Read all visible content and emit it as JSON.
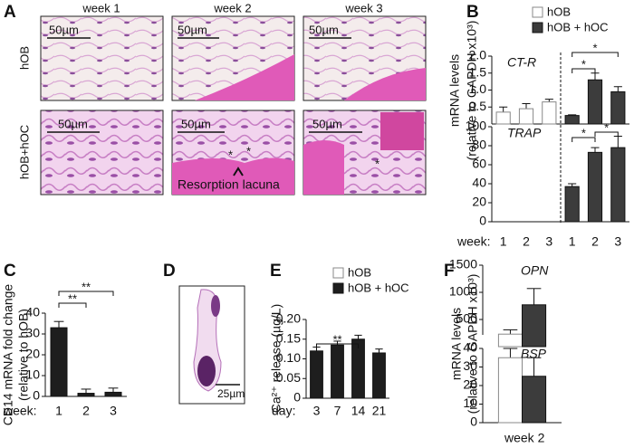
{
  "panel_labels": [
    "A",
    "B",
    "C",
    "D",
    "E",
    "F"
  ],
  "histology": {
    "columns": [
      "week 1",
      "week 2",
      "week 3"
    ],
    "rows": [
      "hOB",
      "hOB+hOC"
    ],
    "scale_bars": [
      "50µm",
      "50µm",
      "50µm",
      "50µm",
      "50µm",
      "50µm"
    ],
    "asterisks": [
      "*",
      "*",
      "*"
    ],
    "annotation": "Resorption lacuna",
    "d_scale_bar": "25µm"
  },
  "chart_data": [
    {
      "type": "bar",
      "label": "CT-R",
      "ylabel": [
        "mRNA levels",
        "(relative to GAPDH x10³)"
      ],
      "series": [
        {
          "name": "hOB",
          "color": "#ffffff",
          "values": [
            0.35,
            0.45,
            0.65,
            null,
            null,
            null
          ],
          "errors": [
            0.15,
            0.15,
            0.08,
            null,
            null,
            null
          ]
        },
        {
          "name": "hOB + hOC",
          "color": "#3c3c3c",
          "values": [
            null,
            null,
            null,
            0.25,
            1.3,
            0.95
          ],
          "errors": [
            null,
            null,
            null,
            0.02,
            0.2,
            0.15
          ]
        }
      ],
      "ylim": [
        0,
        2
      ],
      "yticks": [
        0.5,
        {
          "value": 1,
          "label": "1.0"
        },
        1.5,
        {
          "value": 2,
          "label": "2.0"
        }
      ],
      "significance": [
        "*",
        "*"
      ]
    },
    {
      "type": "bar",
      "label": "TRAP",
      "xlabel": "week:",
      "categories": [
        "1",
        "2",
        "3",
        "1",
        "2",
        "3"
      ],
      "series": [
        {
          "color": "#ffffff",
          "values": [
            0,
            0,
            0,
            null,
            null,
            null
          ],
          "errors": [
            null,
            null,
            null,
            null,
            null,
            null
          ]
        },
        {
          "color": "#3c3c3c",
          "values": [
            null,
            null,
            null,
            37,
            73,
            78
          ],
          "errors": [
            null,
            null,
            null,
            3,
            5,
            12
          ]
        }
      ],
      "ylim": [
        0,
        100
      ],
      "yticks": [
        0,
        20,
        40,
        60,
        80,
        100
      ],
      "significance": [
        "*",
        "*"
      ]
    },
    {
      "type": "bar",
      "ylabel": [
        "CD14 mRNA fold change",
        "(relative to hOB)"
      ],
      "xlabel": "week:",
      "categories": [
        "1",
        "2",
        "3"
      ],
      "series": [
        {
          "color": "#1e1e1e",
          "values": [
            33,
            1.5,
            2
          ],
          "errors": [
            3,
            2,
            2
          ]
        }
      ],
      "ylim": [
        0,
        40
      ],
      "yticks": [
        0,
        10,
        20,
        30,
        40
      ],
      "significance": [
        "**",
        "**"
      ]
    },
    {
      "type": "bar",
      "ylabel": [
        "Ca²⁺ release (µg/L)"
      ],
      "xlabel": "day:",
      "categories": [
        "3",
        "7",
        "14",
        "21"
      ],
      "series": [
        {
          "name": "hOB",
          "color": "#ffffff",
          "values": [
            null,
            null,
            null,
            null
          ],
          "errors": [
            null,
            null,
            null,
            null
          ]
        },
        {
          "name": "hOB + hOC",
          "color": "#1e1e1e",
          "values": [
            0.12,
            0.135,
            0.15,
            0.115
          ],
          "errors": [
            0.01,
            0.01,
            0.01,
            0.01
          ]
        }
      ],
      "ylim": [
        0,
        0.2
      ],
      "yticks": [
        0,
        0.05,
        {
          "value": 0.1,
          "label": "0.10"
        },
        0.15,
        {
          "value": 0.2,
          "label": "0.20"
        }
      ],
      "significance": [
        "**"
      ]
    },
    {
      "type": "bar",
      "label": "OPN",
      "ylabel": [
        "mRNA levels",
        "(relative to GAPDH x10³)"
      ],
      "series": [
        {
          "color": "#ffffff",
          "values": [
            230
          ],
          "errors": [
            80
          ]
        },
        {
          "color": "#3c3c3c",
          "values": [
            770
          ],
          "errors": [
            300
          ]
        }
      ],
      "ylim": [
        0,
        1500
      ],
      "yticks": [
        500,
        1000,
        1500
      ]
    },
    {
      "type": "bar",
      "label": "BSP",
      "xlabel": "week 2",
      "series": [
        {
          "color": "#ffffff",
          "values": [
            35
          ],
          "errors": [
            5
          ]
        },
        {
          "color": "#3c3c3c",
          "values": [
            25
          ],
          "errors": [
            10
          ]
        }
      ],
      "ylim": [
        0,
        40
      ],
      "yticks": [
        0,
        10,
        20,
        30,
        40
      ]
    }
  ]
}
